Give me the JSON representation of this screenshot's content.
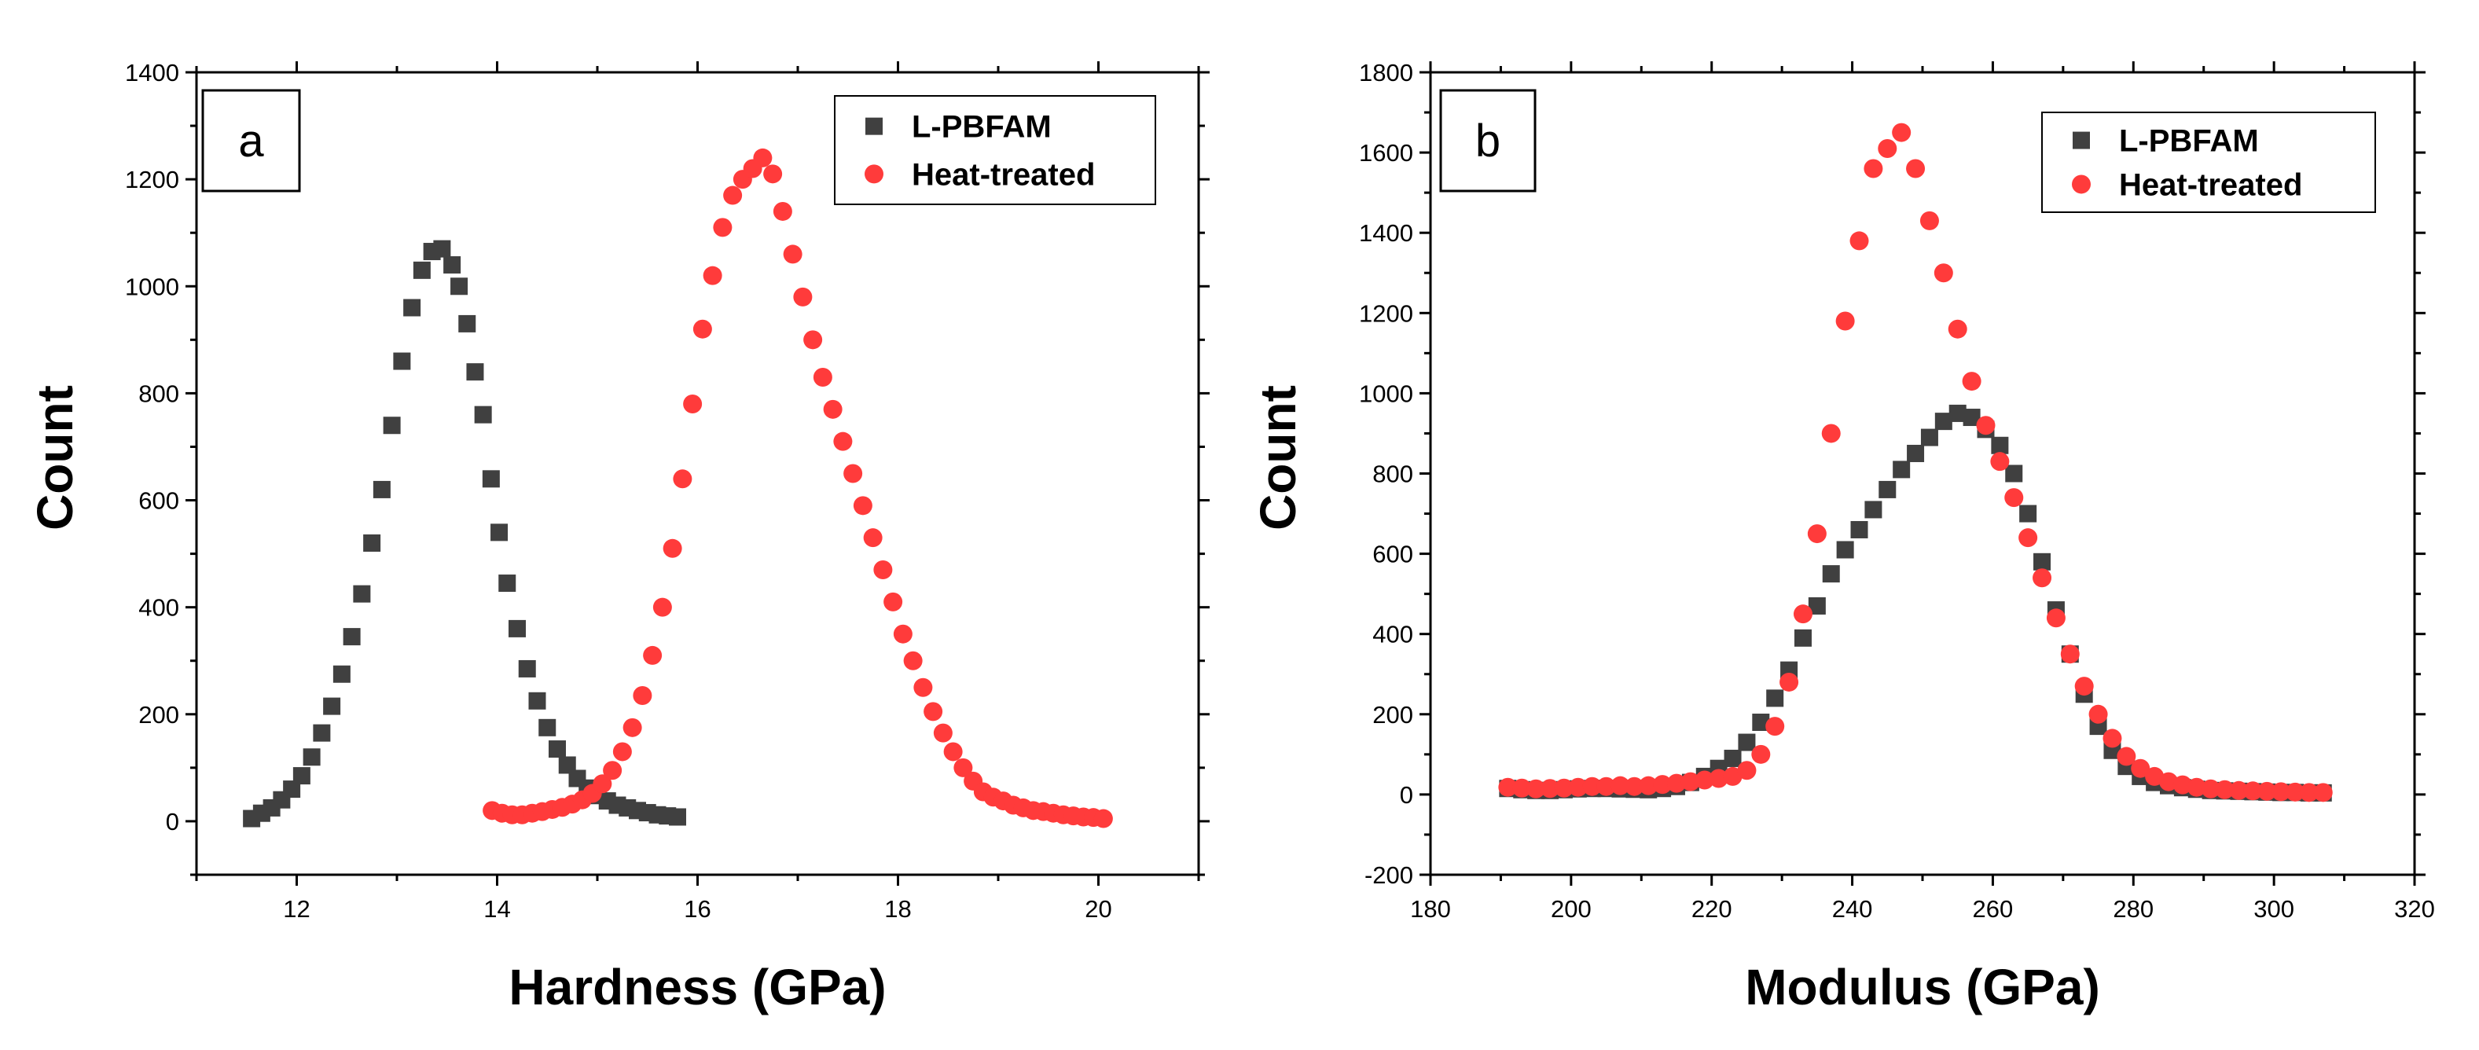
{
  "chart_data": [
    {
      "type": "scatter",
      "panel_label": "a",
      "xlabel": "Hardness (GPa)",
      "ylabel": "Count",
      "xlim": [
        11,
        21
      ],
      "ylim": [
        -100,
        1400
      ],
      "xticks": [
        12,
        14,
        16,
        18,
        20
      ],
      "yticks": [
        0,
        200,
        400,
        600,
        800,
        1000,
        1200,
        1400
      ],
      "legend_position": "top-right",
      "series": [
        {
          "name": "L-PBFAM",
          "marker": "square",
          "color": "#404040",
          "x": [
            11.55,
            11.65,
            11.75,
            11.85,
            11.95,
            12.05,
            12.15,
            12.25,
            12.35,
            12.45,
            12.55,
            12.65,
            12.75,
            12.85,
            12.95,
            13.05,
            13.15,
            13.25,
            13.35,
            13.45,
            13.55,
            13.62,
            13.7,
            13.78,
            13.86,
            13.94,
            14.02,
            14.1,
            14.2,
            14.3,
            14.4,
            14.5,
            14.6,
            14.7,
            14.8,
            14.9,
            15.0,
            15.1,
            15.2,
            15.3,
            15.4,
            15.5,
            15.6,
            15.7,
            15.8
          ],
          "y": [
            5,
            15,
            25,
            40,
            60,
            85,
            120,
            165,
            215,
            275,
            345,
            425,
            520,
            620,
            740,
            860,
            960,
            1030,
            1065,
            1070,
            1040,
            1000,
            930,
            840,
            760,
            640,
            540,
            445,
            360,
            285,
            225,
            175,
            135,
            105,
            80,
            62,
            48,
            38,
            30,
            25,
            20,
            16,
            12,
            10,
            8
          ]
        },
        {
          "name": "Heat-treated",
          "marker": "circle",
          "color": "#ff3b3b",
          "x": [
            13.95,
            14.05,
            14.15,
            14.25,
            14.35,
            14.45,
            14.55,
            14.65,
            14.75,
            14.85,
            14.95,
            15.05,
            15.15,
            15.25,
            15.35,
            15.45,
            15.55,
            15.65,
            15.75,
            15.85,
            15.95,
            16.05,
            16.15,
            16.25,
            16.35,
            16.45,
            16.55,
            16.65,
            16.75,
            16.85,
            16.95,
            17.05,
            17.15,
            17.25,
            17.35,
            17.45,
            17.55,
            17.65,
            17.75,
            17.85,
            17.95,
            18.05,
            18.15,
            18.25,
            18.35,
            18.45,
            18.55,
            18.65,
            18.75,
            18.85,
            18.95,
            19.05,
            19.15,
            19.25,
            19.35,
            19.45,
            19.55,
            19.65,
            19.75,
            19.85,
            19.95,
            20.05
          ],
          "y": [
            20,
            15,
            12,
            12,
            15,
            18,
            22,
            26,
            32,
            40,
            52,
            70,
            95,
            130,
            175,
            235,
            310,
            400,
            510,
            640,
            780,
            920,
            1020,
            1110,
            1170,
            1200,
            1220,
            1240,
            1210,
            1140,
            1060,
            980,
            900,
            830,
            770,
            710,
            650,
            590,
            530,
            470,
            410,
            350,
            300,
            250,
            205,
            165,
            130,
            100,
            75,
            55,
            45,
            38,
            30,
            25,
            20,
            18,
            15,
            12,
            10,
            8,
            7,
            5
          ]
        }
      ]
    },
    {
      "type": "scatter",
      "panel_label": "b",
      "xlabel": "Modulus (GPa)",
      "ylabel": "Count",
      "xlim": [
        180,
        320
      ],
      "ylim": [
        -200,
        1800
      ],
      "xticks": [
        180,
        200,
        220,
        240,
        260,
        280,
        300,
        320
      ],
      "yticks": [
        -200,
        0,
        200,
        400,
        600,
        800,
        1000,
        1200,
        1400,
        1600,
        1800
      ],
      "legend_position": "top-right",
      "series": [
        {
          "name": "L-PBFAM",
          "marker": "square",
          "color": "#404040",
          "x": [
            191,
            193,
            195,
            197,
            199,
            201,
            203,
            205,
            207,
            209,
            211,
            213,
            215,
            217,
            219,
            221,
            223,
            225,
            227,
            229,
            231,
            233,
            235,
            237,
            239,
            241,
            243,
            245,
            247,
            249,
            251,
            253,
            255,
            257,
            259,
            261,
            263,
            265,
            267,
            269,
            271,
            273,
            275,
            277,
            279,
            281,
            283,
            285,
            287,
            289,
            291,
            293,
            295,
            297,
            299,
            301,
            303,
            305,
            307
          ],
          "y": [
            15,
            12,
            10,
            10,
            12,
            14,
            15,
            15,
            14,
            13,
            12,
            15,
            20,
            30,
            45,
            65,
            90,
            130,
            180,
            240,
            310,
            390,
            470,
            550,
            610,
            660,
            710,
            760,
            810,
            850,
            890,
            930,
            950,
            940,
            910,
            870,
            800,
            700,
            580,
            460,
            350,
            250,
            170,
            110,
            70,
            45,
            30,
            22,
            17,
            13,
            10,
            9,
            8,
            7,
            6,
            5,
            5,
            4,
            4
          ]
        },
        {
          "name": "Heat-treated",
          "marker": "circle",
          "color": "#ff3b3b",
          "x": [
            191,
            193,
            195,
            197,
            199,
            201,
            203,
            205,
            207,
            209,
            211,
            213,
            215,
            217,
            219,
            221,
            223,
            225,
            227,
            229,
            231,
            233,
            235,
            237,
            239,
            241,
            243,
            245,
            247,
            249,
            251,
            253,
            255,
            257,
            259,
            261,
            263,
            265,
            267,
            269,
            271,
            273,
            275,
            277,
            279,
            281,
            283,
            285,
            287,
            289,
            291,
            293,
            295,
            297,
            299,
            301,
            303,
            305,
            307
          ],
          "y": [
            18,
            16,
            14,
            15,
            16,
            18,
            20,
            20,
            22,
            20,
            22,
            25,
            28,
            32,
            36,
            40,
            45,
            60,
            100,
            170,
            280,
            450,
            650,
            900,
            1180,
            1380,
            1560,
            1610,
            1650,
            1560,
            1430,
            1300,
            1160,
            1030,
            920,
            830,
            740,
            640,
            540,
            440,
            350,
            270,
            200,
            140,
            95,
            65,
            45,
            32,
            24,
            18,
            14,
            12,
            10,
            9,
            8,
            7,
            6,
            5,
            5
          ]
        }
      ]
    }
  ]
}
